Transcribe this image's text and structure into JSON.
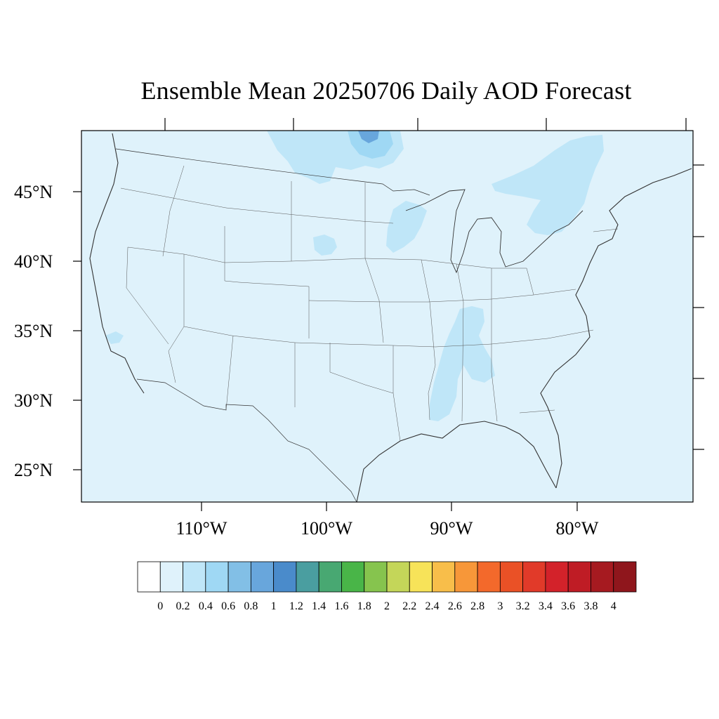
{
  "title": "Ensemble Mean 20250706 Daily AOD Forecast",
  "map": {
    "projection": "lambert-conformal",
    "region": "CONUS",
    "background_value_color": "#dff2fb",
    "lat_labels": [
      "45°N",
      "40°N",
      "35°N",
      "30°N",
      "25°N"
    ],
    "lon_labels": [
      "110°W",
      "100°W",
      "90°W",
      "80°W"
    ],
    "plumes": [
      {
        "region": "Canadian prairies / Lake of the Woods",
        "level": "0.2-0.8"
      },
      {
        "region": "Southern Ontario / Great Lakes to New England",
        "level": "0.2-0.4"
      },
      {
        "region": "Lower Mississippi valley / Tennessee",
        "level": "0.2-0.4"
      },
      {
        "region": "Iowa / Minnesota",
        "level": "0.2-0.4"
      }
    ]
  },
  "colorbar": {
    "colors": [
      "#ffffff",
      "#dff2fb",
      "#bfe6f8",
      "#9fd8f4",
      "#82bfe6",
      "#68a6dc",
      "#4a8bcb",
      "#4a9ea0",
      "#48a872",
      "#49b548",
      "#86c44e",
      "#c4d659",
      "#f7e359",
      "#f8be4a",
      "#f79739",
      "#f3692b",
      "#ea5126",
      "#e13a29",
      "#d3222a",
      "#bf1c25",
      "#a61a20",
      "#8f161c"
    ],
    "labels": [
      "0",
      "0.2",
      "0.4",
      "0.6",
      "0.8",
      "1",
      "1.2",
      "1.4",
      "1.6",
      "1.8",
      "2",
      "2.2",
      "2.4",
      "2.6",
      "2.8",
      "3",
      "3.2",
      "3.4",
      "3.6",
      "3.8",
      "4"
    ]
  }
}
